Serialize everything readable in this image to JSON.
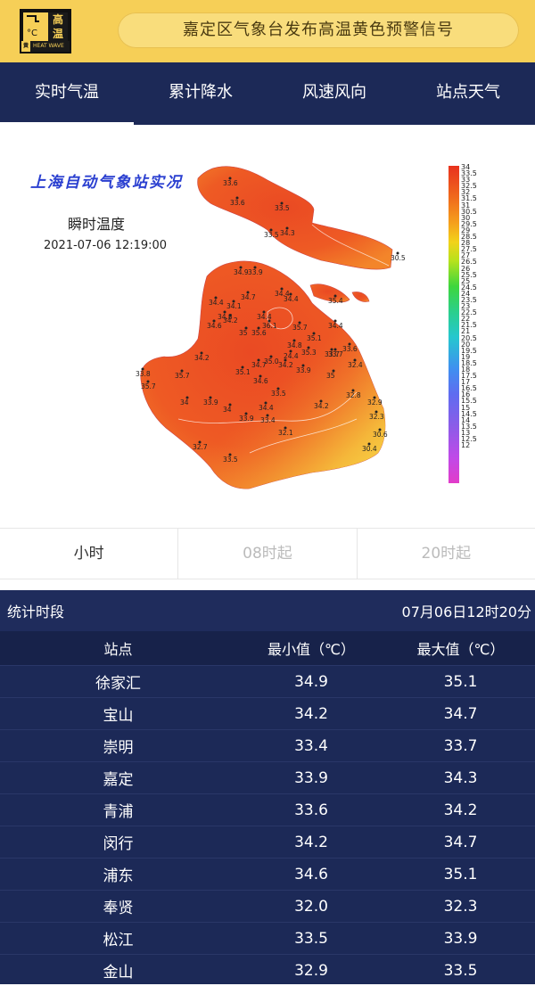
{
  "banner": {
    "icon_label_top": "高",
    "icon_label_bottom": "温",
    "icon_degree": "°C",
    "icon_level": "黄",
    "icon_caption": "HEAT WAVE",
    "title": "嘉定区气象台发布高温黄色预警信号"
  },
  "tabs": [
    {
      "label": "实时气温",
      "active": true
    },
    {
      "label": "累计降水",
      "active": false
    },
    {
      "label": "风速风向",
      "active": false
    },
    {
      "label": "站点天气",
      "active": false
    }
  ],
  "map": {
    "heading": "上海自动气象站实况",
    "subtitle": "瞬时温度",
    "timestamp": "2021-07-06 12:19:00",
    "colorbar_labels": [
      "34",
      "33.5",
      "33",
      "32.5",
      "32",
      "31.5",
      "31",
      "30.5",
      "30",
      "29.5",
      "29",
      "28.5",
      "28",
      "27.5",
      "27",
      "26.5",
      "26",
      "25.5",
      "25",
      "24.5",
      "24",
      "23.5",
      "23",
      "22.5",
      "22",
      "21.5",
      "21",
      "20.5",
      "20",
      "19.5",
      "19",
      "18.5",
      "18",
      "17.5",
      "17",
      "16.5",
      "16",
      "15.5",
      "15",
      "14.5",
      "14",
      "13.5",
      "13",
      "12.5",
      "12"
    ],
    "station_values": [
      {
        "v": "33.6"
      },
      {
        "v": "33.6"
      },
      {
        "v": "33.5"
      },
      {
        "v": "33.5"
      },
      {
        "v": "34.3"
      },
      {
        "v": "30.5"
      },
      {
        "v": "34.9"
      },
      {
        "v": "33.9"
      },
      {
        "v": "34.7"
      },
      {
        "v": "34.4"
      },
      {
        "v": "34.1"
      },
      {
        "v": "34.4"
      },
      {
        "v": "34.4"
      },
      {
        "v": "34.8"
      },
      {
        "v": "34.2"
      },
      {
        "v": "34.6"
      },
      {
        "v": "34.4"
      },
      {
        "v": "35"
      },
      {
        "v": "35.6"
      },
      {
        "v": "36.1"
      },
      {
        "v": "35.7"
      },
      {
        "v": "35.4"
      },
      {
        "v": "34.4"
      },
      {
        "v": "35.1"
      },
      {
        "v": "34.8"
      },
      {
        "v": "24.4"
      },
      {
        "v": "35.3"
      },
      {
        "v": "33.6"
      },
      {
        "v": "33.7"
      },
      {
        "v": "32.4"
      },
      {
        "v": "34.2"
      },
      {
        "v": "34.7"
      },
      {
        "v": "35.0"
      },
      {
        "v": "34.2"
      },
      {
        "v": "33.9"
      },
      {
        "v": "35"
      },
      {
        "v": "35.1"
      },
      {
        "v": "34.6"
      },
      {
        "v": "33.8"
      },
      {
        "v": "35.7"
      },
      {
        "v": "35.7"
      },
      {
        "v": "33.5"
      },
      {
        "v": "33.9"
      },
      {
        "v": "34"
      },
      {
        "v": "34"
      },
      {
        "v": "34.4"
      },
      {
        "v": "33.9"
      },
      {
        "v": "33.4"
      },
      {
        "v": "34.2"
      },
      {
        "v": "32.8"
      },
      {
        "v": "32.9"
      },
      {
        "v": "32.3"
      },
      {
        "v": "33.7"
      },
      {
        "v": "32.1"
      },
      {
        "v": "30.6"
      },
      {
        "v": "30.4"
      },
      {
        "v": "32.7"
      },
      {
        "v": "33.5"
      }
    ]
  },
  "period": {
    "hour": "小时",
    "from08": "08时起",
    "from20": "20时起"
  },
  "stats": {
    "label": "统计时段",
    "time": "07月06日12时20分",
    "headers": {
      "station": "站点",
      "min": "最小值（℃）",
      "max": "最大值（℃）"
    },
    "rows": [
      {
        "station": "徐家汇",
        "min": "34.9",
        "max": "35.1"
      },
      {
        "station": "宝山",
        "min": "34.2",
        "max": "34.7"
      },
      {
        "station": "崇明",
        "min": "33.4",
        "max": "33.7"
      },
      {
        "station": "嘉定",
        "min": "33.9",
        "max": "34.3"
      },
      {
        "station": "青浦",
        "min": "33.6",
        "max": "34.2"
      },
      {
        "station": "闵行",
        "min": "34.2",
        "max": "34.7"
      },
      {
        "station": "浦东",
        "min": "34.6",
        "max": "35.1"
      },
      {
        "station": "奉贤",
        "min": "32.0",
        "max": "32.3"
      },
      {
        "station": "松江",
        "min": "33.5",
        "max": "33.9"
      },
      {
        "station": "金山",
        "min": "32.9",
        "max": "33.5"
      }
    ]
  }
}
